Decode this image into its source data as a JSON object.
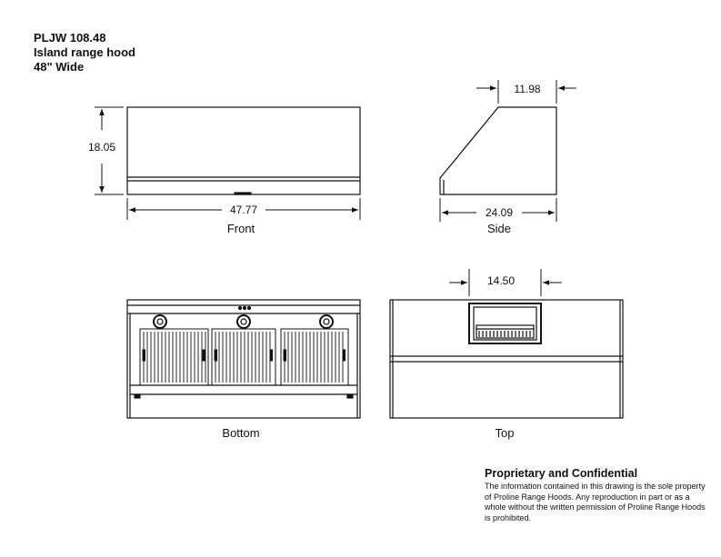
{
  "title": {
    "model": "PLJW 108.48",
    "type": "Island range hood",
    "width": "48\" Wide"
  },
  "dimensions": {
    "front_height": "18.05",
    "front_width": "47.77",
    "side_top": "11.98",
    "side_depth": "24.09",
    "top_opening": "14.50"
  },
  "views": {
    "front": "Front",
    "side": "Side",
    "bottom": "Bottom",
    "top": "Top"
  },
  "notice": {
    "title": "Proprietary and Confidential",
    "body": "The information contained in this drawing is the sole property of Proline Range Hoods. Any reproduction in part or as a whole without the written permission of Proline Range Hoods is prohibited."
  }
}
